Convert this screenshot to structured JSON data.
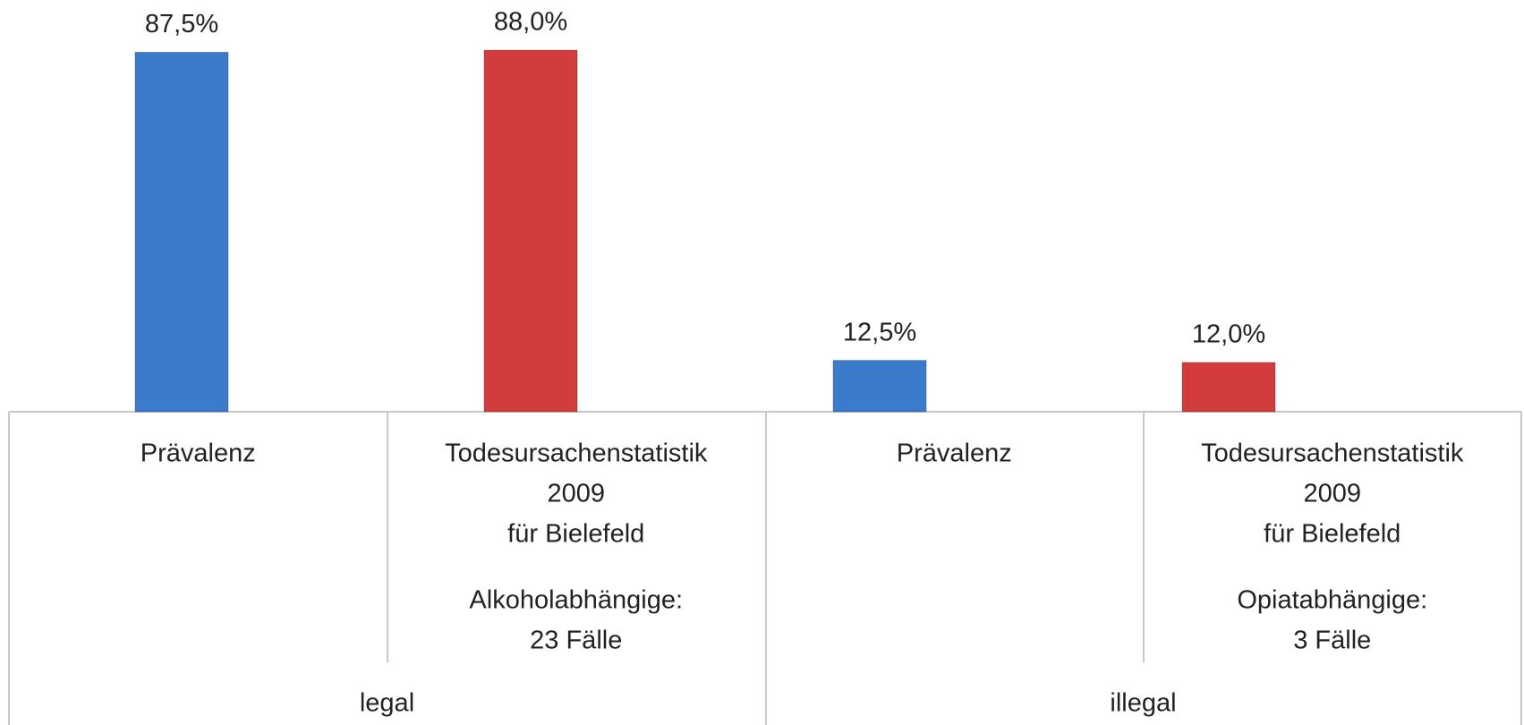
{
  "chart_data": {
    "type": "bar",
    "categories": [
      [
        "Prävalenz"
      ],
      [
        "Todesursachenstatistik",
        "2009",
        "für Bielefeld"
      ],
      [
        "Prävalenz"
      ],
      [
        "Todesursachenstatistik",
        "2009",
        "für Bielefeld"
      ]
    ],
    "category_notes": [
      null,
      [
        "Alkoholabhängige:",
        "23 Fälle"
      ],
      null,
      [
        "Opiatabhängige:",
        "3 Fälle"
      ]
    ],
    "groups": [
      "legal",
      "illegal"
    ],
    "values": [
      87.5,
      88.0,
      12.5,
      12.0
    ],
    "value_labels": [
      "87,5%",
      "88,0%",
      "12,5%",
      "12,0%"
    ],
    "colors": [
      "#3b7bcc",
      "#d23c3c",
      "#3b7bcc",
      "#d23c3c"
    ],
    "ylim": [
      0,
      100
    ],
    "grid": false
  }
}
